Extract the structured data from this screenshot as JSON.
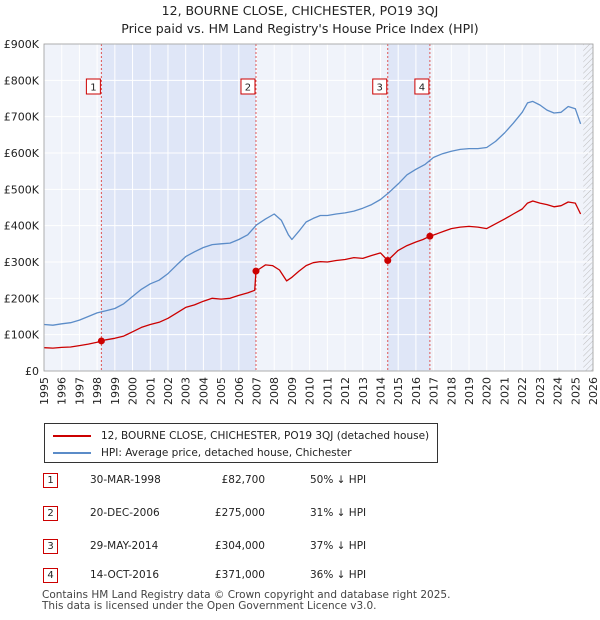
{
  "chart_data": {
    "type": "line",
    "title": "12, BOURNE CLOSE, CHICHESTER, PO19 3QJ",
    "subtitle": "Price paid vs. HM Land Registry's House Price Index (HPI)",
    "xlim": [
      1995,
      2026
    ],
    "ylim": [
      0,
      900000
    ],
    "x_ticks": [
      "1995",
      "1996",
      "1997",
      "1998",
      "1999",
      "2000",
      "2001",
      "2002",
      "2003",
      "2004",
      "2005",
      "2006",
      "2007",
      "2008",
      "2009",
      "2010",
      "2011",
      "2012",
      "2013",
      "2014",
      "2015",
      "2016",
      "2017",
      "2018",
      "2019",
      "2020",
      "2021",
      "2022",
      "2023",
      "2024",
      "2025",
      "2026"
    ],
    "y_ticks": [
      {
        "value": 0,
        "label": "£0"
      },
      {
        "value": 100000,
        "label": "£100K"
      },
      {
        "value": 200000,
        "label": "£200K"
      },
      {
        "value": 300000,
        "label": "£300K"
      },
      {
        "value": 400000,
        "label": "£400K"
      },
      {
        "value": 500000,
        "label": "£500K"
      },
      {
        "value": 600000,
        "label": "£600K"
      },
      {
        "value": 700000,
        "label": "£700K"
      },
      {
        "value": 800000,
        "label": "£800K"
      },
      {
        "value": 900000,
        "label": "£900K"
      }
    ],
    "grid": true,
    "shaded_periods": [
      [
        1998.24,
        2006.97
      ],
      [
        2014.41,
        2016.79
      ]
    ],
    "hatched_from": 2025.45,
    "series": [
      {
        "name": "12, BOURNE CLOSE, CHICHESTER, PO19 3QJ (detached house)",
        "color": "#cc0000",
        "x": [
          1995,
          1995.5,
          1996,
          1996.5,
          1997,
          1997.5,
          1998,
          1998.24,
          1998.5,
          1999,
          1999.5,
          2000,
          2000.5,
          2001,
          2001.5,
          2002,
          2002.5,
          2003,
          2003.5,
          2004,
          2004.5,
          2005,
          2005.5,
          2006,
          2006.5,
          2006.9,
          2006.97,
          2007.2,
          2007.5,
          2007.9,
          2008.3,
          2008.7,
          2009.0,
          2009.4,
          2009.8,
          2010.2,
          2010.6,
          2011,
          2011.5,
          2012,
          2012.5,
          2013,
          2013.5,
          2014,
          2014.41,
          2014.7,
          2015,
          2015.5,
          2016,
          2016.4,
          2016.79,
          2017.2,
          2017.6,
          2018,
          2018.5,
          2019,
          2019.5,
          2020,
          2020.5,
          2021,
          2021.5,
          2022,
          2022.3,
          2022.6,
          2023,
          2023.4,
          2023.8,
          2024.2,
          2024.6,
          2025,
          2025.3
        ],
        "y": [
          64000,
          63000,
          65000,
          66000,
          70000,
          74000,
          79000,
          82700,
          86000,
          90000,
          96000,
          108000,
          120000,
          128000,
          134000,
          145000,
          160000,
          175000,
          182000,
          192000,
          200000,
          198000,
          200000,
          208000,
          215000,
          222000,
          275000,
          282000,
          292000,
          290000,
          278000,
          248000,
          258000,
          275000,
          290000,
          298000,
          301000,
          300000,
          304000,
          307000,
          312000,
          310000,
          318000,
          325000,
          304000,
          318000,
          332000,
          345000,
          355000,
          362000,
          371000,
          378000,
          385000,
          392000,
          396000,
          398000,
          396000,
          392000,
          405000,
          418000,
          432000,
          446000,
          462000,
          468000,
          462000,
          458000,
          452000,
          455000,
          465000,
          462000,
          432000
        ]
      },
      {
        "name": "HPI: Average price, detached house, Chichester",
        "color": "#5b8cc8",
        "x": [
          1995,
          1995.5,
          1996,
          1996.5,
          1997,
          1997.5,
          1998,
          1998.5,
          1999,
          1999.5,
          2000,
          2000.5,
          2001,
          2001.5,
          2002,
          2002.5,
          2003,
          2003.5,
          2004,
          2004.5,
          2005,
          2005.5,
          2006,
          2006.5,
          2007,
          2007.5,
          2008,
          2008.4,
          2008.8,
          2009.0,
          2009.4,
          2009.8,
          2010.2,
          2010.6,
          2011,
          2011.5,
          2012,
          2012.5,
          2013,
          2013.5,
          2014,
          2014.5,
          2015,
          2015.5,
          2016,
          2016.5,
          2017,
          2017.5,
          2018,
          2018.5,
          2019,
          2019.5,
          2020,
          2020.5,
          2021,
          2021.5,
          2022,
          2022.3,
          2022.6,
          2023,
          2023.4,
          2023.8,
          2024.2,
          2024.6,
          2025,
          2025.3
        ],
        "y": [
          128000,
          126000,
          130000,
          133000,
          140000,
          150000,
          160000,
          166000,
          172000,
          185000,
          205000,
          225000,
          240000,
          250000,
          268000,
          292000,
          315000,
          328000,
          340000,
          348000,
          350000,
          352000,
          362000,
          375000,
          402000,
          418000,
          432000,
          415000,
          375000,
          362000,
          385000,
          410000,
          420000,
          428000,
          428000,
          432000,
          435000,
          440000,
          448000,
          458000,
          472000,
          492000,
          515000,
          540000,
          555000,
          568000,
          588000,
          598000,
          605000,
          610000,
          612000,
          612000,
          615000,
          632000,
          655000,
          682000,
          712000,
          738000,
          742000,
          732000,
          718000,
          710000,
          712000,
          728000,
          722000,
          680000
        ]
      }
    ],
    "sale_markers": [
      {
        "label": "1",
        "x": 1998.24,
        "y": 82700
      },
      {
        "label": "2",
        "x": 2006.97,
        "y": 275000
      },
      {
        "label": "3",
        "x": 2014.41,
        "y": 304000
      },
      {
        "label": "4",
        "x": 2016.79,
        "y": 371000
      }
    ]
  },
  "legend": {
    "items": [
      {
        "label": "12, BOURNE CLOSE, CHICHESTER, PO19 3QJ (detached house)",
        "color": "#cc0000"
      },
      {
        "label": "HPI: Average price, detached house, Chichester",
        "color": "#5b8cc8"
      }
    ]
  },
  "sales": [
    {
      "num": "1",
      "date": "30-MAR-1998",
      "price": "£82,700",
      "hpi": "50% ↓ HPI"
    },
    {
      "num": "2",
      "date": "20-DEC-2006",
      "price": "£275,000",
      "hpi": "31% ↓ HPI"
    },
    {
      "num": "3",
      "date": "29-MAY-2014",
      "price": "£304,000",
      "hpi": "37% ↓ HPI"
    },
    {
      "num": "4",
      "date": "14-OCT-2016",
      "price": "£371,000",
      "hpi": "36% ↓ HPI"
    }
  ],
  "footer": {
    "line1": "Contains HM Land Registry data © Crown copyright and database right 2025.",
    "line2": "This data is licensed under the Open Government Licence v3.0."
  }
}
